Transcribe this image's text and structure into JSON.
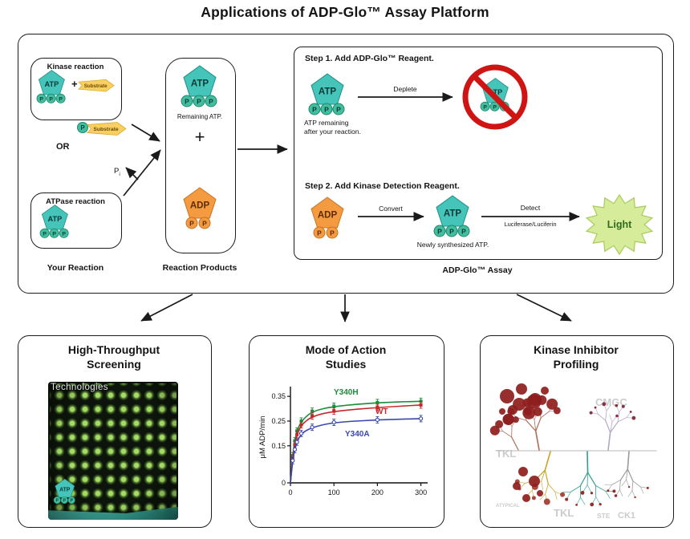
{
  "title": "Applications of ADP-Glo™ Assay Platform",
  "colors": {
    "atp": "#45c4ba",
    "atp_dark": "#1f8d86",
    "atp_text": "#083a37",
    "atp_p": "#42bd9e",
    "atp_p_dark": "#1e8a6e",
    "adp": "#f49b42",
    "adp_dark": "#c97320",
    "adp_text": "#5c2c04",
    "substrate": "#f9cf5f",
    "substrate_dark": "#d9a92f",
    "prohibition": "#cf1414",
    "light_fill": "#d7ec9b",
    "light_edge": "#a8cc59",
    "light_text": "#2f6b1c"
  },
  "glyphs": {
    "atp": "ATP",
    "adp": "ADP",
    "p": "P",
    "plus": "+",
    "substrate": "Substrate"
  },
  "reaction": {
    "kinase_title": "Kinase reaction",
    "or": "OR",
    "atpase_title": "ATPase reaction",
    "pi_base": "P",
    "pi_sub": "i",
    "your_reaction": "Your Reaction"
  },
  "products": {
    "remaining": "Remaining ATP.",
    "plus": "+",
    "label": "Reaction Products"
  },
  "assay": {
    "step1": "Step 1.  Add ADP-Glo™ Reagent.",
    "deplete": "Deplete",
    "atp_remaining_1": "ATP remaining",
    "atp_remaining_2": "after your reaction.",
    "step2": "Step 2.  Add Kinase Detection Reagent.",
    "convert": "Convert",
    "newly": "Newly synthesized ATP.",
    "detect": "Detect",
    "luciferase": "Luciferase/Luciferin",
    "light": "Light",
    "label": "ADP-Glo™ Assay"
  },
  "cards": {
    "hts": {
      "title_1": "High-Throughput",
      "title_2": "Screening",
      "plate_text": "Technologies",
      "atp": "ATP"
    },
    "moa": {
      "title_1": "Mode of Action",
      "title_2": "Studies"
    },
    "kip": {
      "title_1": "Kinase Inhibitor",
      "title_2": "Profiling",
      "labels": [
        "CMGC",
        "TKL",
        "ATYPICAL",
        "TKL",
        "STE",
        "CK1"
      ]
    }
  },
  "chart_data": {
    "type": "line",
    "title": "Mode of Action Studies",
    "xlabel": "",
    "ylabel": "μM ADP/min",
    "xlim": [
      0,
      310
    ],
    "ylim": [
      0,
      0.37
    ],
    "xticks": [
      0,
      100,
      200,
      300
    ],
    "yticks": [
      0,
      0.15,
      0.25,
      0.35
    ],
    "grid": false,
    "legend_position": "inline-labels",
    "x": [
      5,
      10,
      15,
      25,
      50,
      100,
      200,
      300
    ],
    "series": [
      {
        "name": "Y340H",
        "color": "#1e8a3c",
        "values": [
          0.11,
          0.17,
          0.21,
          0.25,
          0.29,
          0.31,
          0.325,
          0.33
        ]
      },
      {
        "name": "WT",
        "color": "#c62828",
        "values": [
          0.1,
          0.155,
          0.195,
          0.235,
          0.27,
          0.29,
          0.305,
          0.315
        ]
      },
      {
        "name": "Y340A",
        "color": "#3949ab",
        "values": [
          0.09,
          0.135,
          0.165,
          0.2,
          0.225,
          0.245,
          0.255,
          0.26
        ]
      }
    ]
  }
}
